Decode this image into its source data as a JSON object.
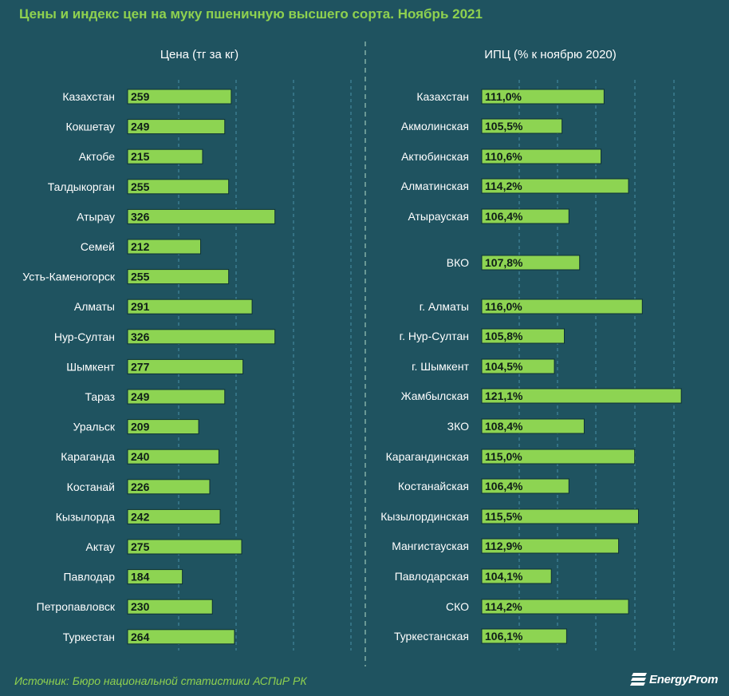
{
  "chart_data": [
    {
      "type": "bar",
      "orientation": "horizontal",
      "title": "Цены и индекс цен на муку пшеничную высшего сорта. Ноябрь 2021",
      "subtitle": "Цена (тг за кг)",
      "categories": [
        "Казахстан",
        "Кокшетау",
        "Актобе",
        "Талдыкорган",
        "Атырау",
        "Семей",
        "Усть-Каменогорск",
        "Алматы",
        "Нур-Султан",
        "Шымкент",
        "Тараз",
        "Уральск",
        "Караганда",
        "Костанай",
        "Кызылорда",
        "Актау",
        "Павлодар",
        "Петропавловск",
        "Туркестан"
      ],
      "values": [
        259,
        249,
        215,
        255,
        326,
        212,
        255,
        291,
        326,
        277,
        249,
        209,
        240,
        226,
        242,
        275,
        184,
        230,
        264
      ],
      "value_labels": [
        "259",
        "249",
        "215",
        "255",
        "326",
        "212",
        "255",
        "291",
        "326",
        "277",
        "249",
        "209",
        "240",
        "226",
        "242",
        "275",
        "184",
        "230",
        "264"
      ],
      "xlim": [
        100,
        450
      ],
      "grid": true
    },
    {
      "type": "bar",
      "orientation": "horizontal",
      "subtitle": "ИПЦ (% к ноябрю 2020)",
      "categories": [
        "Казахстан",
        "Акмолинская",
        "Актюбинская",
        "Алматинская",
        "Атырауская",
        "ВКО",
        "г. Алматы",
        "г. Нур-Султан",
        "г. Шымкент",
        "Жамбылская",
        "ЗКО",
        "Карагандинская",
        "Костанайская",
        "Кызылординская",
        "Мангистауская",
        "Павлодарская",
        "СКО",
        "Туркестанская"
      ],
      "values": [
        111.0,
        105.5,
        110.6,
        114.2,
        106.4,
        107.8,
        116.0,
        105.8,
        104.5,
        121.1,
        108.4,
        115.0,
        106.4,
        115.5,
        112.9,
        104.1,
        114.2,
        106.1
      ],
      "value_labels": [
        "111,0%",
        "105,5%",
        "110,6%",
        "114,2%",
        "106,4%",
        "107,8%",
        "116,0%",
        "105,8%",
        "104,5%",
        "121,1%",
        "108,4%",
        "115,0%",
        "106,4%",
        "115,5%",
        "112,9%",
        "104,1%",
        "114,2%",
        "106,1%"
      ],
      "xlim": [
        95,
        121.5
      ],
      "grid": true
    }
  ],
  "footer": {
    "source": "Источник: Бюро национальной статистики АСПиР РК",
    "logo_text": "EnergyProm"
  },
  "colors": {
    "background": "#1f5360",
    "bar": "#8dd452",
    "title": "#8fd14f"
  }
}
